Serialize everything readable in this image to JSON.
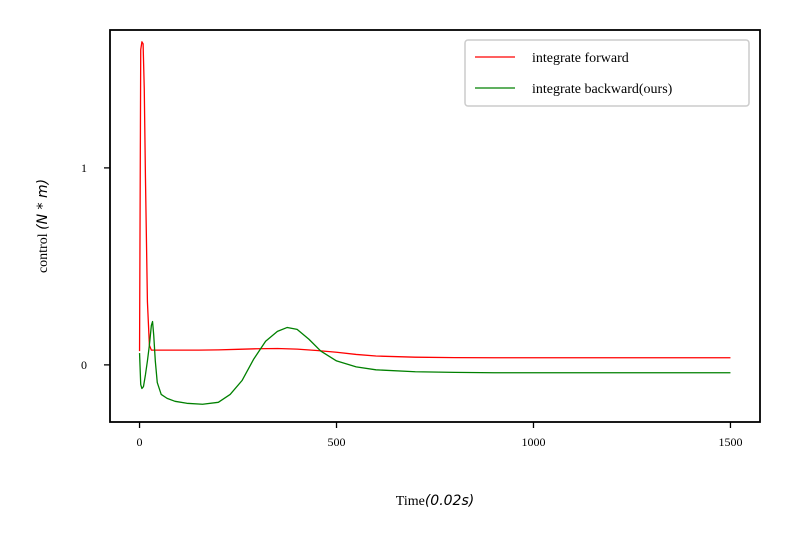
{
  "chart_data": {
    "type": "line",
    "title": "",
    "xlabel_text": "Time",
    "xlabel_unit": "(0.02s)",
    "ylabel_text": "control ",
    "ylabel_unit": "(N * m)",
    "xlim": [
      -75,
      1575
    ],
    "ylim": [
      -0.29,
      1.7
    ],
    "xticks": [
      0,
      500,
      1000,
      1500
    ],
    "xtick_labels": [
      "0",
      "500",
      "1000",
      "1500"
    ],
    "yticks": [
      0,
      1
    ],
    "ytick_labels": [
      "0",
      "1"
    ],
    "grid": false,
    "legend_position": "top-right",
    "series": [
      {
        "name": "integrate forward",
        "color": "#ff0000",
        "x": [
          0,
          3,
          6,
          9,
          12,
          15,
          20,
          25,
          30,
          40,
          60,
          100,
          150,
          200,
          250,
          300,
          350,
          400,
          450,
          500,
          550,
          600,
          700,
          800,
          900,
          1000,
          1100,
          1200,
          1300,
          1400,
          1500
        ],
        "y": [
          0.07,
          1.6,
          1.64,
          1.63,
          1.4,
          0.95,
          0.32,
          0.1,
          0.075,
          0.075,
          0.075,
          0.075,
          0.075,
          0.076,
          0.079,
          0.082,
          0.083,
          0.08,
          0.073,
          0.064,
          0.053,
          0.045,
          0.039,
          0.037,
          0.036,
          0.036,
          0.036,
          0.036,
          0.036,
          0.036,
          0.036
        ]
      },
      {
        "name": "integrate backward(ours)",
        "color": "#008000",
        "x": [
          0,
          3,
          6,
          10,
          15,
          20,
          25,
          30,
          33,
          36,
          40,
          45,
          55,
          70,
          90,
          120,
          160,
          200,
          230,
          260,
          290,
          320,
          350,
          375,
          400,
          430,
          460,
          500,
          550,
          600,
          700,
          800,
          900,
          1000,
          1100,
          1200,
          1300,
          1400,
          1500
        ],
        "y": [
          0.06,
          -0.1,
          -0.12,
          -0.11,
          -0.05,
          0.02,
          0.1,
          0.2,
          0.22,
          0.15,
          0.02,
          -0.09,
          -0.15,
          -0.17,
          -0.185,
          -0.195,
          -0.2,
          -0.19,
          -0.15,
          -0.08,
          0.03,
          0.12,
          0.17,
          0.19,
          0.18,
          0.13,
          0.07,
          0.02,
          -0.01,
          -0.025,
          -0.035,
          -0.038,
          -0.04,
          -0.04,
          -0.04,
          -0.04,
          -0.04,
          -0.04,
          -0.04
        ]
      }
    ]
  }
}
